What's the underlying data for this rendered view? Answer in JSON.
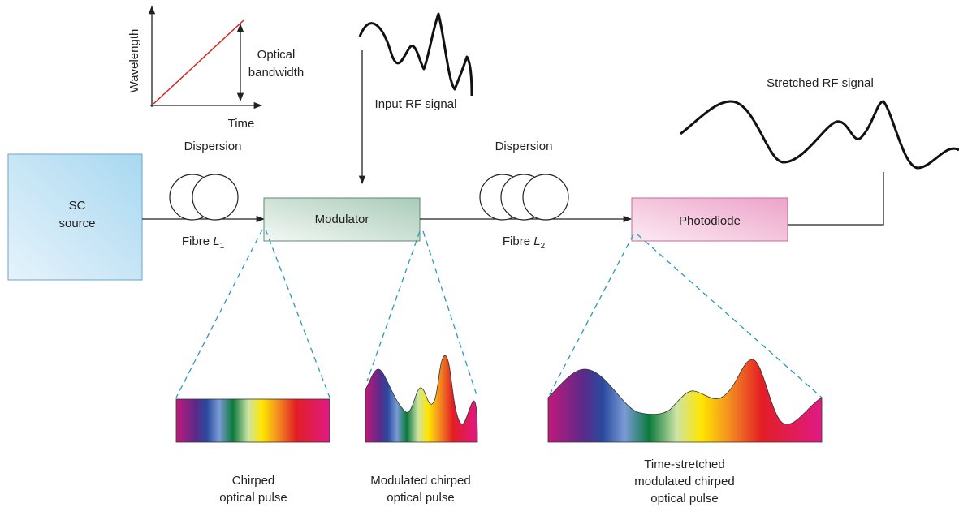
{
  "inset": {
    "y_label": "Wavelength",
    "x_label": "Time",
    "bandwidth_label": [
      "Optical",
      "bandwidth"
    ]
  },
  "input_label": "Input RF signal",
  "output_label": "Stretched RF signal",
  "source": [
    "SC",
    "source"
  ],
  "modulator": "Modulator",
  "photodiode": "Photodiode",
  "fibre1": {
    "dispersion": "Dispersion",
    "text": "Fibre",
    "var": "L",
    "sub": "1"
  },
  "fibre2": {
    "dispersion": "Dispersion",
    "text": "Fibre",
    "var": "L",
    "sub": "2"
  },
  "captions": [
    [
      "Chirped",
      "optical pulse"
    ],
    [
      "Modulated chirped",
      "optical pulse"
    ],
    [
      "Time-stretched",
      "modulated chirped",
      "optical pulse"
    ]
  ]
}
